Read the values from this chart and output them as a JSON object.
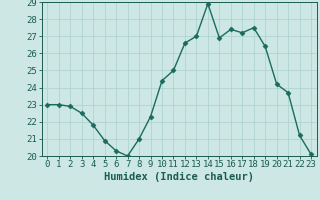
{
  "x": [
    0,
    1,
    2,
    3,
    4,
    5,
    6,
    7,
    8,
    9,
    10,
    11,
    12,
    13,
    14,
    15,
    16,
    17,
    18,
    19,
    20,
    21,
    22,
    23
  ],
  "y": [
    23,
    23,
    22.9,
    22.5,
    21.8,
    20.9,
    20.3,
    20.0,
    21.0,
    22.3,
    24.4,
    25.0,
    26.6,
    27.0,
    28.9,
    26.9,
    27.4,
    27.2,
    27.5,
    26.4,
    24.2,
    23.7,
    21.2,
    20.1
  ],
  "line_color": "#1a6b5e",
  "marker": "D",
  "marker_size": 2.5,
  "bg_color": "#cde8e4",
  "grid_color": "#b0d4d0",
  "xlabel": "Humidex (Indice chaleur)",
  "ylim": [
    20,
    29
  ],
  "xlim": [
    -0.5,
    23.5
  ],
  "yticks": [
    20,
    21,
    22,
    23,
    24,
    25,
    26,
    27,
    28,
    29
  ],
  "xticks": [
    0,
    1,
    2,
    3,
    4,
    5,
    6,
    7,
    8,
    9,
    10,
    11,
    12,
    13,
    14,
    15,
    16,
    17,
    18,
    19,
    20,
    21,
    22,
    23
  ],
  "tick_label_color": "#1a5c50",
  "xlabel_fontsize": 7.5,
  "tick_fontsize": 6.5,
  "line_width": 1.0
}
